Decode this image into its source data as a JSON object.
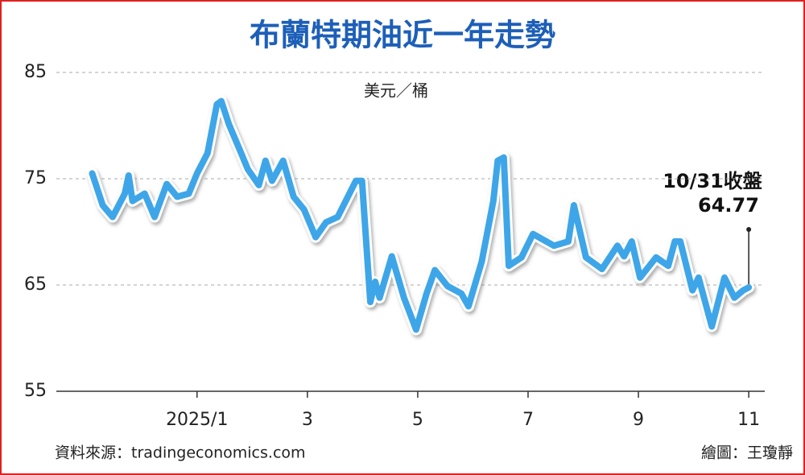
{
  "chart_data": {
    "type": "line",
    "title": "布蘭特期油近一年走勢",
    "y_label": "美元／桶",
    "annotation": "10/31收盤",
    "source": "資料來源：tradingeconomics.com",
    "credit": "繪圖：王瓊靜",
    "xlim": [
      -1.55,
      11.29
    ],
    "xticks": [
      {
        "value": 1,
        "label": "2025/1"
      },
      3,
      5,
      7,
      9,
      11
    ],
    "ylim": [
      55,
      85
    ],
    "yticks": [
      85,
      75,
      65,
      55
    ],
    "grid": true,
    "series": [
      {
        "color": "#3ea6e8",
        "x": [
          -0.9,
          -0.71,
          -0.53,
          -0.31,
          -0.24,
          -0.17,
          0.05,
          0.23,
          0.45,
          0.64,
          0.85,
          1.0,
          1.19,
          1.36,
          1.44,
          1.58,
          1.8,
          1.92,
          2.12,
          2.24,
          2.36,
          2.56,
          2.75,
          2.94,
          3.15,
          3.34,
          3.55,
          3.88,
          3.99,
          4.14,
          4.23,
          4.31,
          4.53,
          4.75,
          4.97,
          5.16,
          5.31,
          5.54,
          5.79,
          5.92,
          6.16,
          6.37,
          6.45,
          6.56,
          6.65,
          6.88,
          7.09,
          7.47,
          7.73,
          7.83,
          8.05,
          8.34,
          8.62,
          8.74,
          8.88,
          9.03,
          9.32,
          9.54,
          9.66,
          9.76,
          9.98,
          10.09,
          10.33,
          10.56,
          10.74,
          10.9,
          11.0
        ],
        "values": [
          75.5,
          72.5,
          71.4,
          73.6,
          75.3,
          72.9,
          73.6,
          71.4,
          74.5,
          73.3,
          73.6,
          75.5,
          77.4,
          82.0,
          82.3,
          80.1,
          77.4,
          75.9,
          74.4,
          76.7,
          74.8,
          76.7,
          73.3,
          72.1,
          69.5,
          70.9,
          71.4,
          74.8,
          74.8,
          63.4,
          65.3,
          63.8,
          67.7,
          63.8,
          60.8,
          64.2,
          66.4,
          64.9,
          64.2,
          63.0,
          67.2,
          72.9,
          76.7,
          77.0,
          66.8,
          67.6,
          69.8,
          68.7,
          69.1,
          72.5,
          67.6,
          66.5,
          68.7,
          67.7,
          69.1,
          65.7,
          67.6,
          66.8,
          69.1,
          69.1,
          64.5,
          65.7,
          61.1,
          65.7,
          63.8,
          64.5,
          64.77
        ]
      }
    ]
  }
}
